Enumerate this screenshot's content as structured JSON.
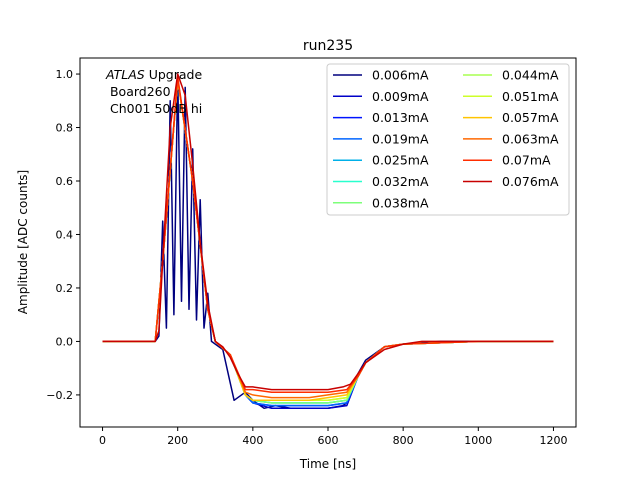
{
  "chart_data": {
    "type": "line",
    "title": "run235",
    "xlabel": "Time [ns]",
    "ylabel": "Amplitude [ADC counts]",
    "xlim": [
      -60,
      1260
    ],
    "ylim": [
      -0.32,
      1.06
    ],
    "xticks": [
      "0",
      "200",
      "400",
      "600",
      "800",
      "1000",
      "1200"
    ],
    "xtick_values": [
      0,
      200,
      400,
      600,
      800,
      1000,
      1200
    ],
    "yticks": [
      "−0.2",
      "0.0",
      "0.2",
      "0.4",
      "0.6",
      "0.8",
      "1.0"
    ],
    "ytick_values": [
      -0.2,
      0,
      0.2,
      0.4,
      0.6,
      0.8,
      1.0
    ],
    "annotation": {
      "italic": "ATLAS",
      "rest": " Upgrade",
      "line2": " Board260",
      "line3": " Ch001 50dB hi"
    },
    "legend_position": "top-right",
    "legend_columns": 2,
    "series": [
      {
        "name": "0.006mA",
        "color": "#00007f",
        "x": [
          0,
          140,
          150,
          160,
          170,
          180,
          190,
          200,
          210,
          220,
          230,
          240,
          250,
          260,
          270,
          280,
          290,
          300,
          320,
          350,
          380,
          400,
          430,
          460,
          500,
          550,
          600,
          640,
          650,
          660,
          680,
          700,
          750,
          800,
          900,
          1000,
          1200
        ],
        "y": [
          0.0,
          0.0,
          0.02,
          0.45,
          0.05,
          0.9,
          0.1,
          1.0,
          0.15,
          0.95,
          0.12,
          0.72,
          0.08,
          0.53,
          0.05,
          0.18,
          0.0,
          -0.01,
          -0.03,
          -0.22,
          -0.19,
          -0.22,
          -0.25,
          -0.24,
          -0.25,
          -0.25,
          -0.25,
          -0.24,
          -0.23,
          -0.18,
          -0.12,
          -0.07,
          -0.02,
          -0.01,
          0.0,
          0.0,
          0.0
        ]
      },
      {
        "name": "0.009mA",
        "color": "#0000c8",
        "x": [
          0,
          140,
          160,
          200,
          240,
          280,
          300,
          340,
          380,
          400,
          450,
          500,
          550,
          600,
          650,
          680,
          700,
          750,
          800,
          1000,
          1200
        ],
        "y": [
          0.0,
          0.0,
          0.3,
          0.98,
          0.6,
          0.12,
          0.0,
          -0.05,
          -0.2,
          -0.23,
          -0.25,
          -0.25,
          -0.25,
          -0.25,
          -0.24,
          -0.13,
          -0.08,
          -0.02,
          -0.01,
          0.0,
          0.0
        ]
      },
      {
        "name": "0.013mA",
        "color": "#0014ff",
        "x": [
          0,
          140,
          160,
          200,
          240,
          280,
          300,
          340,
          380,
          400,
          450,
          500,
          550,
          600,
          650,
          680,
          700,
          750,
          800,
          1000,
          1200
        ],
        "y": [
          0.0,
          0.0,
          0.3,
          0.98,
          0.6,
          0.12,
          0.0,
          -0.05,
          -0.2,
          -0.23,
          -0.24,
          -0.24,
          -0.24,
          -0.24,
          -0.23,
          -0.13,
          -0.08,
          -0.02,
          -0.01,
          0.0,
          0.0
        ]
      },
      {
        "name": "0.019mA",
        "color": "#0064ff",
        "x": [
          0,
          140,
          160,
          200,
          240,
          280,
          300,
          340,
          380,
          400,
          450,
          500,
          550,
          600,
          650,
          680,
          700,
          750,
          800,
          1000,
          1200
        ],
        "y": [
          0.0,
          0.0,
          0.3,
          0.98,
          0.6,
          0.12,
          0.0,
          -0.05,
          -0.2,
          -0.23,
          -0.24,
          -0.24,
          -0.24,
          -0.24,
          -0.23,
          -0.13,
          -0.08,
          -0.02,
          -0.01,
          0.0,
          0.0
        ]
      },
      {
        "name": "0.025mA",
        "color": "#00b0e8",
        "x": [
          0,
          140,
          160,
          200,
          240,
          280,
          300,
          340,
          380,
          400,
          450,
          500,
          550,
          600,
          650,
          680,
          700,
          750,
          800,
          1000,
          1200
        ],
        "y": [
          0.0,
          0.0,
          0.3,
          0.98,
          0.6,
          0.12,
          0.0,
          -0.05,
          -0.2,
          -0.22,
          -0.23,
          -0.23,
          -0.23,
          -0.23,
          -0.22,
          -0.13,
          -0.08,
          -0.02,
          -0.01,
          0.0,
          0.0
        ]
      },
      {
        "name": "0.032mA",
        "color": "#29ffce",
        "x": [
          0,
          140,
          160,
          200,
          240,
          280,
          300,
          340,
          380,
          400,
          450,
          500,
          550,
          600,
          650,
          680,
          700,
          750,
          800,
          1000,
          1200
        ],
        "y": [
          0.0,
          0.0,
          0.3,
          0.98,
          0.6,
          0.12,
          0.0,
          -0.05,
          -0.2,
          -0.22,
          -0.23,
          -0.23,
          -0.23,
          -0.23,
          -0.22,
          -0.13,
          -0.08,
          -0.02,
          -0.01,
          0.0,
          0.0
        ]
      },
      {
        "name": "0.038mA",
        "color": "#7dff7a",
        "x": [
          0,
          140,
          160,
          200,
          240,
          280,
          300,
          340,
          380,
          400,
          450,
          500,
          550,
          600,
          650,
          680,
          700,
          750,
          800,
          1000,
          1200
        ],
        "y": [
          0.0,
          0.0,
          0.3,
          0.98,
          0.6,
          0.12,
          0.0,
          -0.05,
          -0.2,
          -0.22,
          -0.23,
          -0.23,
          -0.23,
          -0.23,
          -0.22,
          -0.13,
          -0.08,
          -0.02,
          -0.01,
          0.0,
          0.0
        ]
      },
      {
        "name": "0.044mA",
        "color": "#a8ff50",
        "x": [
          0,
          140,
          160,
          200,
          240,
          280,
          300,
          340,
          380,
          400,
          450,
          500,
          550,
          600,
          650,
          680,
          700,
          750,
          800,
          1000,
          1200
        ],
        "y": [
          0.0,
          0.0,
          0.3,
          0.98,
          0.6,
          0.12,
          0.0,
          -0.05,
          -0.2,
          -0.22,
          -0.22,
          -0.22,
          -0.22,
          -0.22,
          -0.21,
          -0.13,
          -0.08,
          -0.02,
          -0.01,
          0.0,
          0.0
        ]
      },
      {
        "name": "0.051mA",
        "color": "#ceff29",
        "x": [
          0,
          140,
          160,
          200,
          240,
          280,
          300,
          340,
          380,
          400,
          450,
          500,
          550,
          600,
          650,
          680,
          700,
          750,
          800,
          1000,
          1200
        ],
        "y": [
          0.0,
          0.0,
          0.3,
          0.98,
          0.6,
          0.12,
          0.0,
          -0.05,
          -0.2,
          -0.22,
          -0.22,
          -0.22,
          -0.22,
          -0.22,
          -0.21,
          -0.13,
          -0.08,
          -0.02,
          -0.01,
          0.0,
          0.0
        ]
      },
      {
        "name": "0.057mA",
        "color": "#ffc400",
        "x": [
          0,
          140,
          160,
          200,
          240,
          280,
          300,
          340,
          380,
          400,
          450,
          500,
          550,
          600,
          650,
          680,
          700,
          750,
          800,
          1000,
          1200
        ],
        "y": [
          0.0,
          0.0,
          0.3,
          0.98,
          0.6,
          0.12,
          0.0,
          -0.05,
          -0.2,
          -0.22,
          -0.22,
          -0.22,
          -0.22,
          -0.21,
          -0.2,
          -0.13,
          -0.08,
          -0.02,
          -0.01,
          0.0,
          0.0
        ]
      },
      {
        "name": "0.063mA",
        "color": "#ff6800",
        "x": [
          0,
          140,
          160,
          200,
          240,
          280,
          300,
          340,
          380,
          400,
          450,
          500,
          550,
          600,
          650,
          680,
          700,
          750,
          800,
          1000,
          1200
        ],
        "y": [
          0.0,
          0.0,
          0.3,
          0.98,
          0.6,
          0.12,
          0.0,
          -0.05,
          -0.19,
          -0.2,
          -0.21,
          -0.21,
          -0.21,
          -0.2,
          -0.19,
          -0.13,
          -0.08,
          -0.02,
          -0.01,
          0.0,
          0.0
        ]
      },
      {
        "name": "0.07mA",
        "color": "#ff2d00",
        "x": [
          0,
          140,
          160,
          200,
          240,
          280,
          300,
          340,
          380,
          400,
          450,
          500,
          550,
          600,
          650,
          680,
          700,
          750,
          800,
          1000,
          1200
        ],
        "y": [
          0.0,
          0.0,
          0.3,
          0.99,
          0.6,
          0.12,
          0.0,
          -0.05,
          -0.18,
          -0.18,
          -0.19,
          -0.19,
          -0.19,
          -0.19,
          -0.18,
          -0.13,
          -0.08,
          -0.02,
          -0.01,
          0.0,
          0.0
        ]
      },
      {
        "name": "0.076mA",
        "color": "#c80000",
        "x": [
          0,
          140,
          150,
          160,
          180,
          200,
          220,
          240,
          260,
          280,
          300,
          320,
          340,
          360,
          380,
          400,
          450,
          500,
          550,
          600,
          640,
          660,
          680,
          700,
          750,
          800,
          850,
          1000,
          1200
        ],
        "y": [
          0.0,
          0.0,
          0.04,
          0.3,
          0.8,
          1.0,
          0.92,
          0.66,
          0.37,
          0.14,
          0.0,
          -0.02,
          -0.06,
          -0.12,
          -0.17,
          -0.17,
          -0.18,
          -0.18,
          -0.18,
          -0.18,
          -0.17,
          -0.16,
          -0.12,
          -0.08,
          -0.03,
          -0.01,
          0.0,
          0.0,
          0.0
        ]
      }
    ]
  }
}
